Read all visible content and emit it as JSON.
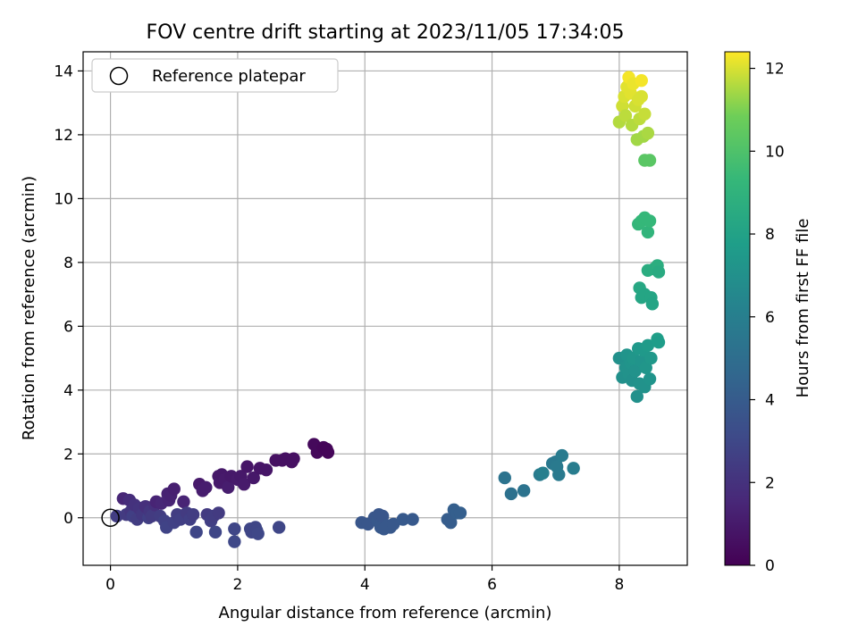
{
  "chart_data": {
    "type": "scatter",
    "title": "FOV centre drift starting at 2023/11/05 17:34:05",
    "xlabel": "Angular distance from reference (arcmin)",
    "ylabel": "Rotation from reference (arcmin)",
    "xlim": [
      -0.43,
      9.07
    ],
    "ylim": [
      -1.49,
      14.6
    ],
    "xticks": [
      0,
      2,
      4,
      6,
      8
    ],
    "yticks": [
      0,
      2,
      4,
      6,
      8,
      10,
      12,
      14
    ],
    "grid": true,
    "legend": {
      "position": "top-left",
      "entries": [
        "Reference platepar"
      ]
    },
    "reference_point": {
      "x": 0,
      "y": 0
    },
    "colorbar": {
      "label": "Hours from first FF file",
      "range": [
        0,
        12.4
      ],
      "ticks": [
        0,
        2,
        4,
        6,
        8,
        10,
        12
      ],
      "colormap": "viridis"
    },
    "points": [
      {
        "x": 0.1,
        "y": 0.05,
        "c": 2.5
      },
      {
        "x": 0.2,
        "y": 0.6,
        "c": 1.5
      },
      {
        "x": 0.25,
        "y": 0.1,
        "c": 2.4
      },
      {
        "x": 0.3,
        "y": 0.55,
        "c": 1.8
      },
      {
        "x": 0.32,
        "y": 0.2,
        "c": 2.2
      },
      {
        "x": 0.35,
        "y": 0.05,
        "c": 2.6
      },
      {
        "x": 0.38,
        "y": 0.4,
        "c": 2.0
      },
      {
        "x": 0.42,
        "y": -0.05,
        "c": 2.5
      },
      {
        "x": 0.45,
        "y": 0.3,
        "c": 2.1
      },
      {
        "x": 0.5,
        "y": 0.1,
        "c": 2.3
      },
      {
        "x": 0.55,
        "y": 0.35,
        "c": 1.9
      },
      {
        "x": 0.6,
        "y": 0.0,
        "c": 2.6
      },
      {
        "x": 0.62,
        "y": 0.2,
        "c": 2.2
      },
      {
        "x": 0.65,
        "y": 0.05,
        "c": 2.4
      },
      {
        "x": 0.7,
        "y": 0.4,
        "c": 1.9
      },
      {
        "x": 0.72,
        "y": 0.5,
        "c": 1.4
      },
      {
        "x": 0.78,
        "y": 0.05,
        "c": 2.5
      },
      {
        "x": 0.8,
        "y": 0.45,
        "c": 1.5
      },
      {
        "x": 0.85,
        "y": -0.1,
        "c": 2.7
      },
      {
        "x": 0.88,
        "y": -0.3,
        "c": 2.8
      },
      {
        "x": 0.9,
        "y": 0.75,
        "c": 1.3
      },
      {
        "x": 0.92,
        "y": 0.55,
        "c": 1.4
      },
      {
        "x": 0.95,
        "y": 0.7,
        "c": 1.3
      },
      {
        "x": 1.0,
        "y": 0.9,
        "c": 1.2
      },
      {
        "x": 1.0,
        "y": -0.15,
        "c": 2.7
      },
      {
        "x": 1.05,
        "y": 0.1,
        "c": 2.5
      },
      {
        "x": 1.1,
        "y": -0.05,
        "c": 2.6
      },
      {
        "x": 1.15,
        "y": 0.5,
        "c": 1.4
      },
      {
        "x": 1.2,
        "y": 0.15,
        "c": 2.4
      },
      {
        "x": 1.25,
        "y": -0.05,
        "c": 2.6
      },
      {
        "x": 1.3,
        "y": 0.1,
        "c": 2.5
      },
      {
        "x": 1.35,
        "y": -0.45,
        "c": 2.9
      },
      {
        "x": 1.4,
        "y": 1.05,
        "c": 1.0
      },
      {
        "x": 1.45,
        "y": 0.85,
        "c": 1.1
      },
      {
        "x": 1.5,
        "y": 0.95,
        "c": 1.1
      },
      {
        "x": 1.52,
        "y": 0.1,
        "c": 2.4
      },
      {
        "x": 1.58,
        "y": -0.1,
        "c": 2.6
      },
      {
        "x": 1.62,
        "y": 0.05,
        "c": 2.5
      },
      {
        "x": 1.65,
        "y": -0.45,
        "c": 2.9
      },
      {
        "x": 1.7,
        "y": 0.15,
        "c": 2.4
      },
      {
        "x": 1.7,
        "y": 1.3,
        "c": 0.9
      },
      {
        "x": 1.72,
        "y": 1.1,
        "c": 1.0
      },
      {
        "x": 1.75,
        "y": 1.35,
        "c": 0.9
      },
      {
        "x": 1.8,
        "y": 1.2,
        "c": 1.0
      },
      {
        "x": 1.85,
        "y": 0.95,
        "c": 1.1
      },
      {
        "x": 1.9,
        "y": 1.3,
        "c": 0.9
      },
      {
        "x": 1.95,
        "y": -0.75,
        "c": 3.0
      },
      {
        "x": 1.95,
        "y": -0.35,
        "c": 2.9
      },
      {
        "x": 2.0,
        "y": 1.2,
        "c": 1.0
      },
      {
        "x": 2.05,
        "y": 1.3,
        "c": 0.9
      },
      {
        "x": 2.1,
        "y": 1.05,
        "c": 1.0
      },
      {
        "x": 2.15,
        "y": 1.6,
        "c": 0.8
      },
      {
        "x": 2.2,
        "y": -0.35,
        "c": 2.9
      },
      {
        "x": 2.22,
        "y": -0.45,
        "c": 2.9
      },
      {
        "x": 2.25,
        "y": 1.25,
        "c": 0.9
      },
      {
        "x": 2.28,
        "y": -0.3,
        "c": 2.9
      },
      {
        "x": 2.3,
        "y": -0.4,
        "c": 2.9
      },
      {
        "x": 2.32,
        "y": -0.5,
        "c": 3.0
      },
      {
        "x": 2.35,
        "y": 1.55,
        "c": 0.8
      },
      {
        "x": 2.45,
        "y": 1.5,
        "c": 0.8
      },
      {
        "x": 2.6,
        "y": 1.8,
        "c": 0.6
      },
      {
        "x": 2.65,
        "y": -0.3,
        "c": 2.9
      },
      {
        "x": 2.7,
        "y": 1.8,
        "c": 0.6
      },
      {
        "x": 2.75,
        "y": 1.85,
        "c": 0.6
      },
      {
        "x": 2.85,
        "y": 1.75,
        "c": 0.6
      },
      {
        "x": 2.88,
        "y": 1.85,
        "c": 0.6
      },
      {
        "x": 3.2,
        "y": 2.3,
        "c": 0.3
      },
      {
        "x": 3.25,
        "y": 2.05,
        "c": 0.3
      },
      {
        "x": 3.35,
        "y": 2.2,
        "c": 0.2
      },
      {
        "x": 3.4,
        "y": 2.15,
        "c": 0.2
      },
      {
        "x": 3.42,
        "y": 2.05,
        "c": 0.2
      },
      {
        "x": 3.95,
        "y": -0.15,
        "c": 3.7
      },
      {
        "x": 4.05,
        "y": -0.2,
        "c": 3.7
      },
      {
        "x": 4.15,
        "y": 0.0,
        "c": 3.7
      },
      {
        "x": 4.2,
        "y": -0.1,
        "c": 3.8
      },
      {
        "x": 4.22,
        "y": 0.1,
        "c": 3.7
      },
      {
        "x": 4.25,
        "y": -0.3,
        "c": 3.8
      },
      {
        "x": 4.28,
        "y": 0.05,
        "c": 3.7
      },
      {
        "x": 4.3,
        "y": -0.35,
        "c": 3.8
      },
      {
        "x": 4.35,
        "y": -0.25,
        "c": 3.8
      },
      {
        "x": 4.4,
        "y": -0.3,
        "c": 3.8
      },
      {
        "x": 4.45,
        "y": -0.2,
        "c": 3.8
      },
      {
        "x": 4.6,
        "y": -0.05,
        "c": 3.9
      },
      {
        "x": 4.75,
        "y": -0.05,
        "c": 3.9
      },
      {
        "x": 5.3,
        "y": -0.05,
        "c": 4.1
      },
      {
        "x": 5.35,
        "y": -0.15,
        "c": 4.1
      },
      {
        "x": 5.4,
        "y": 0.25,
        "c": 4.2
      },
      {
        "x": 5.45,
        "y": 0.15,
        "c": 4.2
      },
      {
        "x": 5.5,
        "y": 0.15,
        "c": 4.2
      },
      {
        "x": 6.2,
        "y": 1.25,
        "c": 5.3
      },
      {
        "x": 6.3,
        "y": 0.75,
        "c": 5.2
      },
      {
        "x": 6.5,
        "y": 0.85,
        "c": 5.3
      },
      {
        "x": 6.75,
        "y": 1.35,
        "c": 5.8
      },
      {
        "x": 6.8,
        "y": 1.4,
        "c": 6.0
      },
      {
        "x": 6.95,
        "y": 1.7,
        "c": 5.6
      },
      {
        "x": 7.0,
        "y": 1.75,
        "c": 5.6
      },
      {
        "x": 7.02,
        "y": 1.6,
        "c": 5.7
      },
      {
        "x": 7.05,
        "y": 1.35,
        "c": 5.7
      },
      {
        "x": 7.1,
        "y": 1.95,
        "c": 5.8
      },
      {
        "x": 7.28,
        "y": 1.55,
        "c": 5.9
      },
      {
        "x": 8.0,
        "y": 5.0,
        "c": 7.0
      },
      {
        "x": 8.05,
        "y": 4.4,
        "c": 7.0
      },
      {
        "x": 8.1,
        "y": 4.7,
        "c": 7.1
      },
      {
        "x": 8.12,
        "y": 5.1,
        "c": 7.2
      },
      {
        "x": 8.15,
        "y": 4.5,
        "c": 7.1
      },
      {
        "x": 8.18,
        "y": 4.85,
        "c": 7.2
      },
      {
        "x": 8.2,
        "y": 4.3,
        "c": 7.0
      },
      {
        "x": 8.22,
        "y": 5.0,
        "c": 7.3
      },
      {
        "x": 8.25,
        "y": 4.6,
        "c": 7.1
      },
      {
        "x": 8.28,
        "y": 3.8,
        "c": 7.0
      },
      {
        "x": 8.3,
        "y": 5.3,
        "c": 7.5
      },
      {
        "x": 8.32,
        "y": 4.2,
        "c": 7.1
      },
      {
        "x": 8.35,
        "y": 4.9,
        "c": 7.2
      },
      {
        "x": 8.38,
        "y": 5.25,
        "c": 7.5
      },
      {
        "x": 8.4,
        "y": 4.1,
        "c": 7.1
      },
      {
        "x": 8.42,
        "y": 4.7,
        "c": 7.3
      },
      {
        "x": 8.45,
        "y": 5.4,
        "c": 7.6
      },
      {
        "x": 8.48,
        "y": 4.35,
        "c": 7.2
      },
      {
        "x": 8.5,
        "y": 5.0,
        "c": 7.4
      },
      {
        "x": 8.6,
        "y": 5.6,
        "c": 7.8
      },
      {
        "x": 8.62,
        "y": 5.5,
        "c": 7.7
      },
      {
        "x": 8.32,
        "y": 7.2,
        "c": 8.3
      },
      {
        "x": 8.35,
        "y": 6.9,
        "c": 8.2
      },
      {
        "x": 8.4,
        "y": 7.0,
        "c": 8.2
      },
      {
        "x": 8.45,
        "y": 7.75,
        "c": 8.6
      },
      {
        "x": 8.5,
        "y": 6.9,
        "c": 8.2
      },
      {
        "x": 8.52,
        "y": 6.7,
        "c": 8.1
      },
      {
        "x": 8.55,
        "y": 7.8,
        "c": 8.6
      },
      {
        "x": 8.6,
        "y": 7.9,
        "c": 8.7
      },
      {
        "x": 8.62,
        "y": 7.7,
        "c": 8.5
      },
      {
        "x": 8.3,
        "y": 9.2,
        "c": 9.2
      },
      {
        "x": 8.35,
        "y": 9.3,
        "c": 9.3
      },
      {
        "x": 8.4,
        "y": 9.4,
        "c": 9.3
      },
      {
        "x": 8.45,
        "y": 8.95,
        "c": 9.1
      },
      {
        "x": 8.48,
        "y": 9.3,
        "c": 9.3
      },
      {
        "x": 8.4,
        "y": 11.2,
        "c": 10.3
      },
      {
        "x": 8.48,
        "y": 11.2,
        "c": 10.3
      },
      {
        "x": 8.0,
        "y": 12.4,
        "c": 11.6
      },
      {
        "x": 8.05,
        "y": 12.9,
        "c": 11.9
      },
      {
        "x": 8.08,
        "y": 13.2,
        "c": 12.0
      },
      {
        "x": 8.1,
        "y": 12.6,
        "c": 11.7
      },
      {
        "x": 8.12,
        "y": 13.5,
        "c": 12.1
      },
      {
        "x": 8.15,
        "y": 13.8,
        "c": 12.3
      },
      {
        "x": 8.18,
        "y": 13.3,
        "c": 12.1
      },
      {
        "x": 8.2,
        "y": 12.3,
        "c": 11.6
      },
      {
        "x": 8.22,
        "y": 13.6,
        "c": 12.2
      },
      {
        "x": 8.25,
        "y": 12.9,
        "c": 11.9
      },
      {
        "x": 8.28,
        "y": 11.85,
        "c": 11.4
      },
      {
        "x": 8.3,
        "y": 13.1,
        "c": 12.0
      },
      {
        "x": 8.32,
        "y": 12.5,
        "c": 11.7
      },
      {
        "x": 8.35,
        "y": 13.7,
        "c": 12.3
      },
      {
        "x": 8.38,
        "y": 11.95,
        "c": 11.4
      },
      {
        "x": 8.4,
        "y": 12.65,
        "c": 11.8
      },
      {
        "x": 8.45,
        "y": 12.05,
        "c": 11.5
      },
      {
        "x": 8.35,
        "y": 13.2,
        "c": 12.0
      }
    ]
  }
}
